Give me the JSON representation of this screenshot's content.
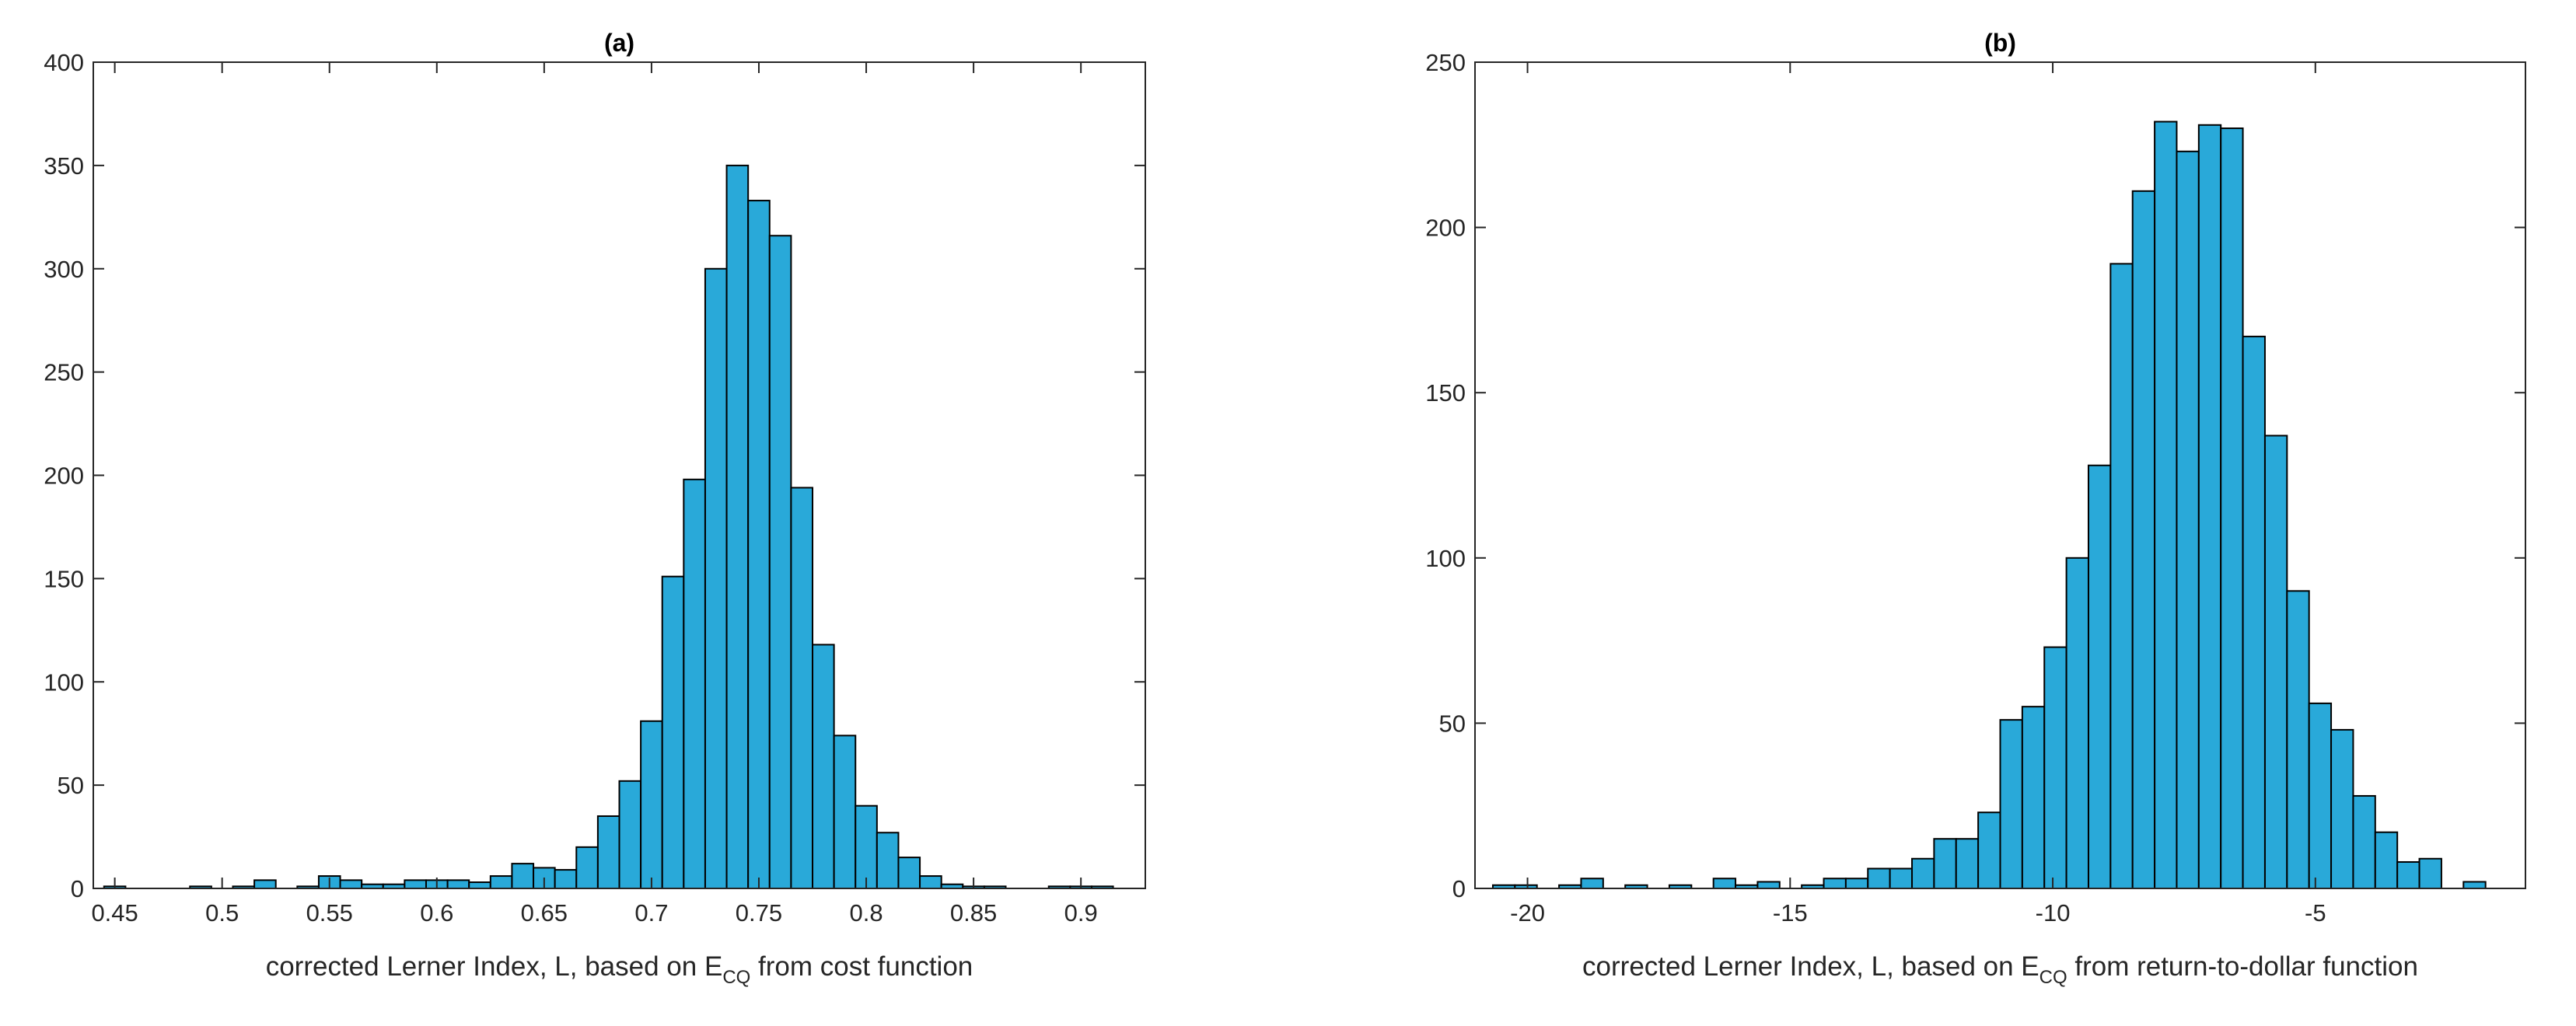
{
  "chart_data": [
    {
      "type": "histogram",
      "title": "(a)",
      "xlabel": {
        "text": "corrected Lerner Index, L, based on E",
        "sub": "CQ",
        "tail": " from cost function"
      },
      "bins": [
        0.445,
        0.455,
        0.465,
        0.475,
        0.485,
        0.495,
        0.505,
        0.515,
        0.525,
        0.535,
        0.545,
        0.555,
        0.565,
        0.575,
        0.585,
        0.595,
        0.605,
        0.615,
        0.625,
        0.635,
        0.645,
        0.655,
        0.665,
        0.675,
        0.685,
        0.695,
        0.705,
        0.715,
        0.725,
        0.735,
        0.745,
        0.755,
        0.765,
        0.775,
        0.785,
        0.795,
        0.805,
        0.815,
        0.825,
        0.835,
        0.845,
        0.855,
        0.865,
        0.875,
        0.885,
        0.895,
        0.905,
        0.915,
        0.925
      ],
      "values": [
        1,
        0,
        0,
        0,
        1,
        0,
        1,
        4,
        0,
        1,
        6,
        4,
        2,
        2,
        4,
        4,
        4,
        3,
        6,
        12,
        10,
        9,
        20,
        35,
        52,
        81,
        151,
        198,
        300,
        350,
        333,
        316,
        194,
        118,
        74,
        40,
        27,
        15,
        6,
        2,
        1,
        1,
        0,
        0,
        1,
        1,
        1,
        0
      ],
      "color": "#29a9d9",
      "edgecolor": "#000000",
      "xlim": [
        0.44,
        0.93
      ],
      "xticks": [
        0.45,
        0.5,
        0.55,
        0.6,
        0.65,
        0.7,
        0.75,
        0.8,
        0.85,
        0.9
      ],
      "ylim": [
        0,
        400
      ],
      "yticks": [
        0,
        50,
        100,
        150,
        200,
        250,
        300,
        350,
        400
      ]
    },
    {
      "type": "histogram",
      "title": "(b)",
      "xlabel": {
        "text": "corrected Lerner Index, L, based on E",
        "sub": "CQ",
        "tail": " from return-to-dollar function"
      },
      "bins": [
        -20.66,
        -20.24,
        -19.82,
        -19.4,
        -18.98,
        -18.56,
        -18.14,
        -17.72,
        -17.3,
        -16.88,
        -16.46,
        -16.04,
        -15.62,
        -15.2,
        -14.78,
        -14.36,
        -13.94,
        -13.52,
        -13.1,
        -12.68,
        -12.26,
        -11.84,
        -11.42,
        -11,
        -10.58,
        -10.16,
        -9.74,
        -9.32,
        -8.9,
        -8.48,
        -8.06,
        -7.64,
        -7.22,
        -6.8,
        -6.38,
        -5.96,
        -5.54,
        -5.12,
        -4.7,
        -4.28,
        -3.86,
        -3.44,
        -3.02,
        -2.6,
        -2.18,
        -1.76
      ],
      "values": [
        1,
        1,
        0,
        1,
        3,
        0,
        1,
        0,
        1,
        0,
        3,
        1,
        2,
        0,
        1,
        3,
        3,
        6,
        6,
        9,
        15,
        15,
        23,
        51,
        55,
        73,
        100,
        128,
        189,
        211,
        232,
        223,
        231,
        230,
        167,
        137,
        90,
        56,
        48,
        28,
        17,
        8,
        9,
        0,
        2
      ],
      "color": "#29a9d9",
      "edgecolor": "#000000",
      "xlim": [
        -21,
        -1
      ],
      "xticks": [
        -20,
        -15,
        -10,
        -5
      ],
      "ylim": [
        0,
        250
      ],
      "yticks": [
        0,
        50,
        100,
        150,
        200,
        250
      ]
    }
  ]
}
